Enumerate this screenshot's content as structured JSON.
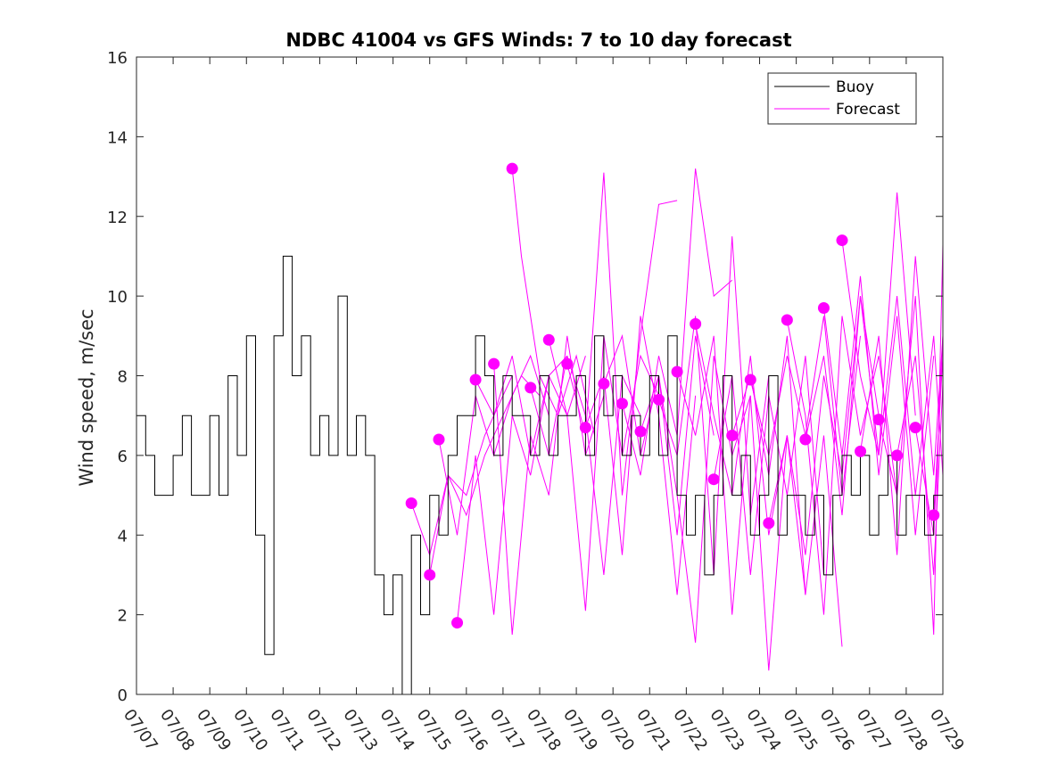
{
  "chart_data": {
    "type": "line",
    "title": "NDBC 41004 vs GFS Winds: 7 to 10 day forecast",
    "xlabel": "",
    "ylabel": "Wind speed, m/sec",
    "xlim": [
      "07/07",
      "07/29"
    ],
    "ylim": [
      0,
      16
    ],
    "yticks": [
      0,
      2,
      4,
      6,
      8,
      10,
      12,
      14,
      16
    ],
    "xticks": [
      "07/07",
      "07/08",
      "07/09",
      "07/10",
      "07/11",
      "07/12",
      "07/13",
      "07/14",
      "07/15",
      "07/16",
      "07/17",
      "07/18",
      "07/19",
      "07/20",
      "07/21",
      "07/22",
      "07/23",
      "07/24",
      "07/25",
      "07/26",
      "07/27",
      "07/28",
      "07/29"
    ],
    "grid": false,
    "legend": {
      "position": "top-right",
      "entries": [
        "Buoy",
        "Forecast"
      ]
    },
    "colors": {
      "buoy": "#000000",
      "forecast": "#ff00ff"
    },
    "series": [
      {
        "name": "Buoy",
        "color": "#000000",
        "style": "step",
        "x": [
          "07/07 00:00",
          "07/07 06:00",
          "07/07 12:00",
          "07/07 18:00",
          "07/08 00:00",
          "07/08 06:00",
          "07/08 12:00",
          "07/08 18:00",
          "07/09 00:00",
          "07/09 06:00",
          "07/09 12:00",
          "07/09 18:00",
          "07/10 00:00",
          "07/10 06:00",
          "07/10 12:00",
          "07/10 18:00",
          "07/11 00:00",
          "07/11 06:00",
          "07/11 12:00",
          "07/11 18:00",
          "07/12 00:00",
          "07/12 06:00",
          "07/12 12:00",
          "07/12 18:00",
          "07/13 00:00",
          "07/13 06:00",
          "07/13 12:00",
          "07/13 18:00",
          "07/14 00:00",
          "07/14 06:00",
          "07/14 12:00",
          "07/14 18:00",
          "07/15 00:00",
          "07/15 06:00",
          "07/15 12:00",
          "07/15 18:00",
          "07/16 00:00",
          "07/16 06:00",
          "07/16 12:00",
          "07/16 18:00",
          "07/17 00:00",
          "07/17 06:00",
          "07/17 12:00",
          "07/17 18:00",
          "07/18 00:00",
          "07/18 06:00",
          "07/18 12:00",
          "07/18 18:00",
          "07/19 00:00",
          "07/19 06:00",
          "07/19 12:00",
          "07/19 18:00",
          "07/20 00:00",
          "07/20 06:00",
          "07/20 12:00",
          "07/20 18:00",
          "07/21 00:00",
          "07/21 06:00",
          "07/21 12:00",
          "07/21 18:00",
          "07/22 00:00",
          "07/22 06:00",
          "07/22 12:00",
          "07/22 18:00",
          "07/23 00:00",
          "07/23 06:00",
          "07/23 12:00",
          "07/23 18:00",
          "07/24 00:00",
          "07/24 06:00",
          "07/24 12:00",
          "07/24 18:00",
          "07/25 00:00",
          "07/25 06:00",
          "07/25 12:00",
          "07/25 18:00",
          "07/26 00:00",
          "07/26 06:00",
          "07/26 12:00",
          "07/26 18:00",
          "07/27 00:00",
          "07/27 06:00",
          "07/27 12:00",
          "07/27 18:00",
          "07/28 00:00",
          "07/28 06:00",
          "07/28 12:00",
          "07/28 18:00",
          "07/29 00:00"
        ],
        "values": [
          7,
          6,
          5,
          5,
          6,
          7,
          5,
          5,
          7,
          5,
          8,
          6,
          9,
          4,
          1,
          9,
          11,
          8,
          9,
          6,
          7,
          6,
          10,
          6,
          7,
          6,
          3,
          2,
          3,
          0,
          4,
          2,
          5,
          4,
          6,
          7,
          7,
          9,
          8,
          6,
          8,
          7,
          7,
          6,
          8,
          6,
          7,
          7,
          8,
          6,
          9,
          7,
          8,
          6,
          7,
          6,
          8,
          6,
          9,
          5,
          4,
          5,
          3,
          5,
          8,
          5,
          6,
          4,
          5,
          8,
          4,
          5,
          5,
          4,
          5,
          3,
          5,
          6,
          5,
          6,
          4,
          5,
          6,
          4,
          5,
          5,
          4,
          5,
          6
        ]
      },
      {
        "name": "Forecast",
        "color": "#ff00ff",
        "x": [
          "07/14 12:00",
          "07/15 00:00",
          "07/15 12:00",
          "07/16 00:00",
          "07/16 12:00",
          "07/17 00:00",
          "07/17 06:00"
        ],
        "values": [
          4.8,
          3.5,
          5.5,
          5.0,
          6.5,
          7.5,
          8.0
        ]
      },
      {
        "color": "#ff00ff",
        "x": [
          "07/15 00:00",
          "07/15 12:00",
          "07/16 00:00",
          "07/16 12:00",
          "07/17 00:00",
          "07/17 12:00",
          "07/18 00:00"
        ],
        "values": [
          3.0,
          5.5,
          4.5,
          6.0,
          7.0,
          8.0,
          7.5
        ]
      },
      {
        "color": "#ff00ff",
        "x": [
          "07/15 06:00",
          "07/15 18:00",
          "07/16 06:00",
          "07/16 18:00",
          "07/17 06:00",
          "07/17 18:00",
          "07/18 06:00"
        ],
        "values": [
          6.4,
          4.0,
          7.5,
          6.0,
          7.5,
          8.5,
          7.0
        ]
      },
      {
        "color": "#ff00ff",
        "x": [
          "07/15 18:00",
          "07/16 06:00",
          "07/16 18:00",
          "07/17 06:00",
          "07/17 18:00",
          "07/18 06:00",
          "07/18 18:00"
        ],
        "values": [
          1.8,
          6.0,
          2.0,
          7.0,
          5.5,
          8.0,
          8.5
        ]
      },
      {
        "color": "#ff00ff",
        "x": [
          "07/16 06:00",
          "07/16 18:00",
          "07/17 06:00",
          "07/17 18:00",
          "07/18 06:00",
          "07/18 18:00",
          "07/19 06:00"
        ],
        "values": [
          7.9,
          7.0,
          8.5,
          6.0,
          8.0,
          7.0,
          8.5
        ]
      },
      {
        "color": "#ff00ff",
        "x": [
          "07/16 18:00",
          "07/17 06:00",
          "07/17 18:00",
          "07/18 06:00",
          "07/18 18:00",
          "07/19 06:00",
          "07/19 18:00"
        ],
        "values": [
          8.3,
          1.5,
          6.5,
          5.0,
          9.0,
          6.0,
          7.5
        ]
      },
      {
        "color": "#ff00ff",
        "x": [
          "07/17 06:00",
          "07/17 12:00",
          "07/17 18:00",
          "07/18 00:00",
          "07/18 12:00",
          "07/19 00:00",
          "07/19 12:00"
        ],
        "values": [
          13.2,
          11.0,
          9.5,
          8.0,
          7.0,
          8.5,
          6.5
        ]
      },
      {
        "color": "#ff00ff",
        "x": [
          "07/17 18:00",
          "07/18 06:00",
          "07/18 18:00",
          "07/19 06:00",
          "07/19 18:00",
          "07/20 06:00",
          "07/20 18:00"
        ],
        "values": [
          7.7,
          6.0,
          8.5,
          7.0,
          3.0,
          8.0,
          7.0
        ]
      },
      {
        "color": "#ff00ff",
        "x": [
          "07/18 06:00",
          "07/18 18:00",
          "07/19 06:00",
          "07/19 18:00",
          "07/20 06:00",
          "07/20 18:00",
          "07/21 06:00"
        ],
        "values": [
          8.9,
          7.0,
          2.1,
          9.0,
          6.0,
          8.5,
          7.5
        ]
      },
      {
        "color": "#ff00ff",
        "x": [
          "07/18 18:00",
          "07/19 06:00",
          "07/19 18:00",
          "07/20 06:00",
          "07/20 18:00",
          "07/21 06:00",
          "07/21 18:00"
        ],
        "values": [
          8.3,
          6.5,
          13.1,
          5.0,
          9.0,
          12.3,
          12.4
        ]
      },
      {
        "color": "#ff00ff",
        "x": [
          "07/19 06:00",
          "07/19 18:00",
          "07/20 06:00",
          "07/20 18:00",
          "07/21 06:00",
          "07/21 18:00",
          "07/22 06:00"
        ],
        "values": [
          6.7,
          8.0,
          3.5,
          9.5,
          7.0,
          2.5,
          7.5
        ]
      },
      {
        "color": "#ff00ff",
        "x": [
          "07/19 18:00",
          "07/20 06:00",
          "07/20 18:00",
          "07/21 06:00",
          "07/21 18:00",
          "07/22 06:00",
          "07/22 18:00"
        ],
        "values": [
          7.8,
          9.0,
          6.0,
          8.0,
          4.0,
          9.0,
          6.5
        ]
      },
      {
        "color": "#ff00ff",
        "x": [
          "07/20 06:00",
          "07/20 18:00",
          "07/21 06:00",
          "07/21 18:00",
          "07/22 06:00",
          "07/22 18:00",
          "07/23 06:00"
        ],
        "values": [
          7.3,
          5.5,
          8.5,
          6.5,
          13.2,
          10.0,
          10.4
        ]
      },
      {
        "color": "#ff00ff",
        "x": [
          "07/20 18:00",
          "07/21 06:00",
          "07/21 18:00",
          "07/22 06:00",
          "07/22 18:00",
          "07/23 06:00",
          "07/23 18:00"
        ],
        "values": [
          6.6,
          8.0,
          5.0,
          1.3,
          8.5,
          6.0,
          7.5
        ]
      },
      {
        "color": "#ff00ff",
        "x": [
          "07/21 06:00",
          "07/21 18:00",
          "07/22 06:00",
          "07/22 18:00",
          "07/23 06:00",
          "07/23 18:00",
          "07/24 06:00"
        ],
        "values": [
          7.4,
          6.0,
          9.5,
          3.0,
          11.5,
          4.5,
          8.0
        ]
      },
      {
        "color": "#ff00ff",
        "x": [
          "07/21 18:00",
          "07/22 06:00",
          "07/22 18:00",
          "07/23 06:00",
          "07/23 18:00",
          "07/24 06:00",
          "07/24 18:00"
        ],
        "values": [
          8.1,
          6.5,
          9.0,
          2.0,
          7.5,
          0.6,
          6.5
        ]
      },
      {
        "color": "#ff00ff",
        "x": [
          "07/22 06:00",
          "07/22 18:00",
          "07/23 06:00",
          "07/23 18:00",
          "07/24 06:00",
          "07/24 18:00",
          "07/25 06:00"
        ],
        "values": [
          9.3,
          7.0,
          5.0,
          8.5,
          4.0,
          6.5,
          2.5
        ]
      },
      {
        "color": "#ff00ff",
        "x": [
          "07/22 18:00",
          "07/23 06:00",
          "07/23 18:00",
          "07/24 06:00",
          "07/24 18:00",
          "07/25 06:00",
          "07/25 18:00"
        ],
        "values": [
          5.4,
          8.0,
          3.0,
          7.5,
          5.0,
          8.5,
          3.0
        ]
      },
      {
        "color": "#ff00ff",
        "x": [
          "07/23 06:00",
          "07/23 18:00",
          "07/24 06:00",
          "07/24 18:00",
          "07/25 06:00",
          "07/25 18:00",
          "07/26 06:00"
        ],
        "values": [
          6.5,
          8.0,
          5.5,
          9.0,
          2.5,
          6.5,
          1.2
        ]
      },
      {
        "color": "#ff00ff",
        "x": [
          "07/23 18:00",
          "07/24 06:00",
          "07/24 18:00",
          "07/25 06:00",
          "07/25 18:00",
          "07/26 06:00",
          "07/26 18:00"
        ],
        "values": [
          7.9,
          6.0,
          8.5,
          6.5,
          9.5,
          5.0,
          9.0
        ]
      },
      {
        "color": "#ff00ff",
        "x": [
          "07/24 06:00",
          "07/24 18:00",
          "07/25 06:00",
          "07/25 18:00",
          "07/26 06:00",
          "07/26 18:00",
          "07/27 06:00"
        ],
        "values": [
          4.3,
          6.5,
          3.5,
          8.0,
          5.5,
          10.0,
          7.0
        ]
      },
      {
        "color": "#ff00ff",
        "x": [
          "07/24 18:00",
          "07/25 06:00",
          "07/25 18:00",
          "07/26 06:00",
          "07/26 18:00",
          "07/27 06:00",
          "07/27 18:00"
        ],
        "values": [
          9.4,
          7.0,
          2.0,
          9.5,
          6.5,
          8.5,
          5.0
        ]
      },
      {
        "color": "#ff00ff",
        "x": [
          "07/25 06:00",
          "07/25 18:00",
          "07/26 06:00",
          "07/26 18:00",
          "07/27 06:00",
          "07/27 18:00",
          "07/28 06:00"
        ],
        "values": [
          6.4,
          8.5,
          4.5,
          10.0,
          6.0,
          12.6,
          7.0
        ]
      },
      {
        "color": "#ff00ff",
        "x": [
          "07/25 18:00",
          "07/26 06:00",
          "07/26 18:00",
          "07/27 06:00",
          "07/27 18:00",
          "07/28 06:00",
          "07/28 18:00"
        ],
        "values": [
          9.7,
          6.0,
          10.5,
          5.5,
          9.5,
          4.0,
          8.5
        ]
      },
      {
        "color": "#ff00ff",
        "x": [
          "07/26 06:00",
          "07/26 18:00",
          "07/27 06:00",
          "07/27 18:00",
          "07/28 06:00",
          "07/28 18:00",
          "07/29 00:00"
        ],
        "values": [
          11.4,
          8.0,
          6.0,
          10.0,
          5.0,
          9.0,
          5.5
        ]
      },
      {
        "color": "#ff00ff",
        "x": [
          "07/26 18:00",
          "07/27 06:00",
          "07/27 18:00",
          "07/28 06:00",
          "07/28 18:00",
          "07/29 00:00"
        ],
        "values": [
          6.1,
          9.0,
          3.5,
          11.0,
          5.5,
          9.0
        ]
      },
      {
        "color": "#ff00ff",
        "x": [
          "07/27 06:00",
          "07/27 18:00",
          "07/28 06:00",
          "07/28 18:00",
          "07/29 00:00"
        ],
        "values": [
          6.9,
          5.0,
          10.0,
          1.5,
          11.3
        ]
      },
      {
        "color": "#ff00ff",
        "x": [
          "07/27 18:00",
          "07/28 06:00",
          "07/28 18:00",
          "07/29 00:00"
        ],
        "values": [
          6.0,
          8.5,
          3.0,
          7.8
        ]
      },
      {
        "color": "#ff00ff",
        "x": [
          "07/28 06:00",
          "07/28 18:00",
          "07/29 00:00"
        ],
        "values": [
          6.7,
          4.0,
          9.0
        ]
      },
      {
        "color": "#ff00ff",
        "x": [
          "07/28 18:00",
          "07/29 00:00"
        ],
        "values": [
          4.5,
          8.5
        ]
      }
    ]
  }
}
